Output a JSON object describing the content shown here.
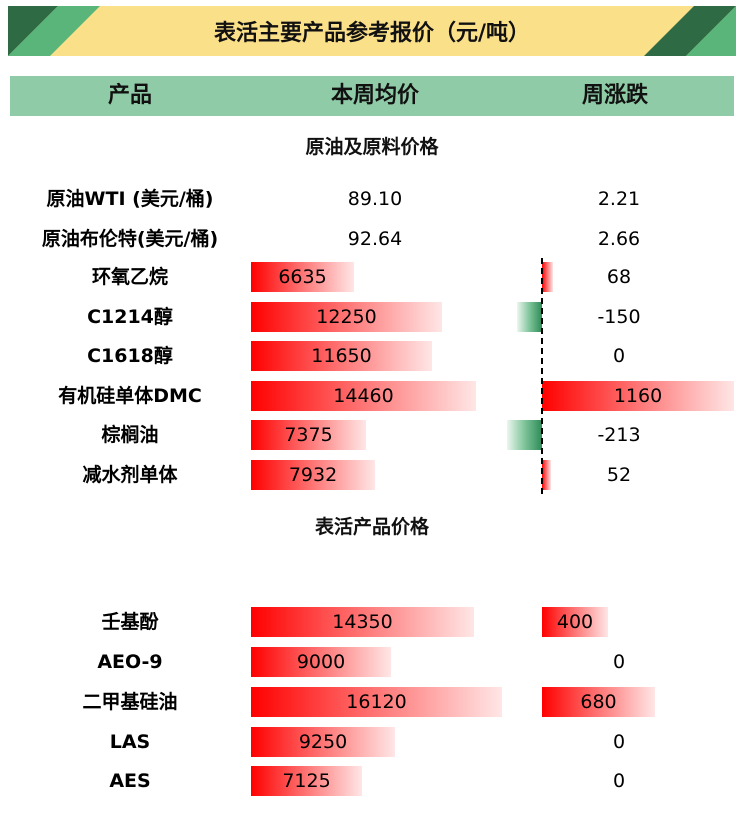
{
  "title": "表活主要产品参考报价（元/吨）",
  "colors": {
    "banner_bg": "#fbe08a",
    "banner_stripe_dark": "#2e6b45",
    "banner_stripe_light": "#5ab57a",
    "header_bg": "#8fcba6",
    "positive_bar": "#ff0000",
    "negative_bar": "#2e8b57"
  },
  "chart_data": {
    "type": "table",
    "columns": [
      "产品",
      "本周均价",
      "周涨跌"
    ],
    "price_bar_max": 16120,
    "change_bar_max": 1160,
    "sections": [
      {
        "title": "原油及原料价格",
        "rows": [
          {
            "product": "原油WTI (美元/桶)",
            "price": "89.10",
            "change": "2.21",
            "price_bar": false,
            "change_bar": false
          },
          {
            "product": "原油布伦特(美元/桶)",
            "price": "92.64",
            "change": "2.66",
            "price_bar": false,
            "change_bar": false
          },
          {
            "product": "环氧乙烷",
            "price": "6635",
            "change": "68",
            "price_bar": true,
            "change_bar": true
          },
          {
            "product": "C1214醇",
            "price": "12250",
            "change": "-150",
            "price_bar": true,
            "change_bar": true
          },
          {
            "product": "C1618醇",
            "price": "11650",
            "change": "0",
            "price_bar": true,
            "change_bar": true
          },
          {
            "product": "有机硅单体DMC",
            "price": "14460",
            "change": "1160",
            "price_bar": true,
            "change_bar": true
          },
          {
            "product": "棕榈油",
            "price": "7375",
            "change": "-213",
            "price_bar": true,
            "change_bar": true
          },
          {
            "product": "减水剂单体",
            "price": "7932",
            "change": "52",
            "price_bar": true,
            "change_bar": true
          }
        ]
      },
      {
        "title": "表活产品价格",
        "rows": [
          {
            "product": "壬基酚",
            "price": "14350",
            "change": "400",
            "price_bar": true,
            "change_bar": true
          },
          {
            "product": "AEO-9",
            "price": "9000",
            "change": "0",
            "price_bar": true,
            "change_bar": true
          },
          {
            "product": "二甲基硅油",
            "price": "16120",
            "change": "680",
            "price_bar": true,
            "change_bar": true
          },
          {
            "product": "LAS",
            "price": "9250",
            "change": "0",
            "price_bar": true,
            "change_bar": true
          },
          {
            "product": "AES",
            "price": "7125",
            "change": "0",
            "price_bar": true,
            "change_bar": true
          }
        ]
      }
    ]
  }
}
